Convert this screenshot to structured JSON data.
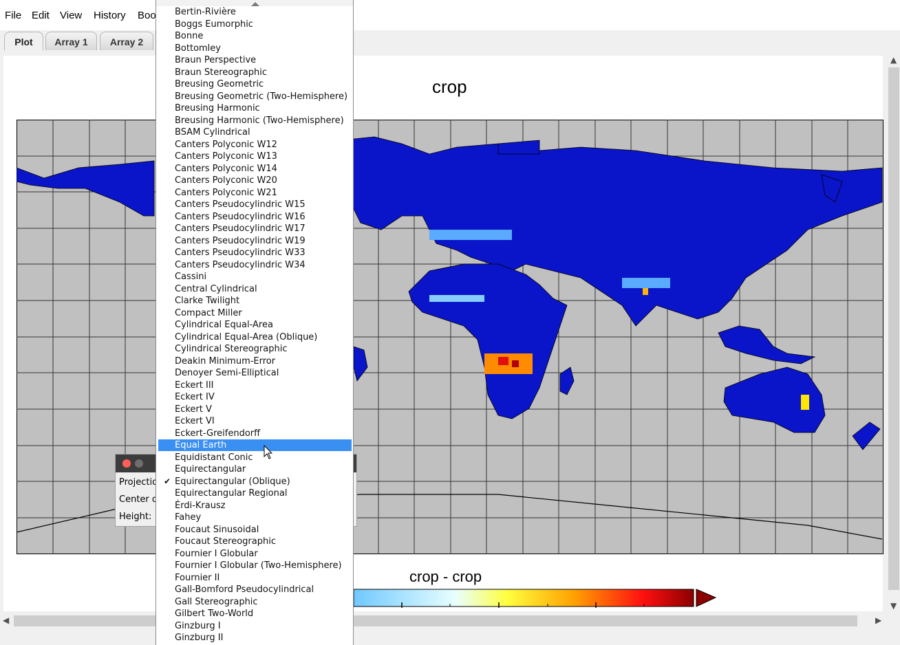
{
  "menu": {
    "file": "File",
    "edit": "Edit",
    "view": "View",
    "history": "History",
    "book": "Boo"
  },
  "tabs": [
    "Plot",
    "Array 1",
    "Array 2"
  ],
  "plot": {
    "title": "crop",
    "colorbar_title": "crop - crop"
  },
  "dialog": {
    "projection_label": "Projection",
    "center_label": "Center or",
    "height_label": "Height:"
  },
  "projection_menu": {
    "items": [
      "Bertin-Rivière",
      "Boggs Eumorphic",
      "Bonne",
      "Bottomley",
      "Braun Perspective",
      "Braun Stereographic",
      "Breusing Geometric",
      "Breusing Geometric (Two-Hemisphere)",
      "Breusing Harmonic",
      "Breusing Harmonic (Two-Hemisphere)",
      "BSAM Cylindrical",
      "Canters Polyconic W12",
      "Canters Polyconic W13",
      "Canters Polyconic W14",
      "Canters Polyconic W20",
      "Canters Polyconic W21",
      "Canters Pseudocylindric W15",
      "Canters Pseudocylindric W16",
      "Canters Pseudocylindric W17",
      "Canters Pseudocylindric W19",
      "Canters Pseudocylindric W33",
      "Canters Pseudocylindric W34",
      "Cassini",
      "Central Cylindrical",
      "Clarke Twilight",
      "Compact Miller",
      "Cylindrical Equal-Area",
      "Cylindrical Equal-Area (Oblique)",
      "Cylindrical Stereographic",
      "Deakin Minimum-Error",
      "Denoyer Semi-Elliptical",
      "Eckert III",
      "Eckert IV",
      "Eckert V",
      "Eckert VI",
      "Eckert-Greifendorff",
      "Equal Earth",
      "Equidistant Conic",
      "Equirectangular",
      "Equirectangular (Oblique)",
      "Equirectangular Regional",
      "Érdi-Krausz",
      "Fahey",
      "Foucaut Sinusoidal",
      "Foucaut Stereographic",
      "Fournier I Globular",
      "Fournier I Globular (Two-Hemisphere)",
      "Fournier II",
      "Gall-Bomford Pseudocylindrical",
      "Gall Stereographic",
      "Gilbert Two-World",
      "Ginzburg I",
      "Ginzburg II"
    ],
    "highlighted": "Equal Earth",
    "checked": "Equirectangular (Oblique)"
  },
  "colors": {
    "highlight": "#3a8ff2",
    "ocean": "#c0c0c0",
    "land": "#0a14c8"
  }
}
